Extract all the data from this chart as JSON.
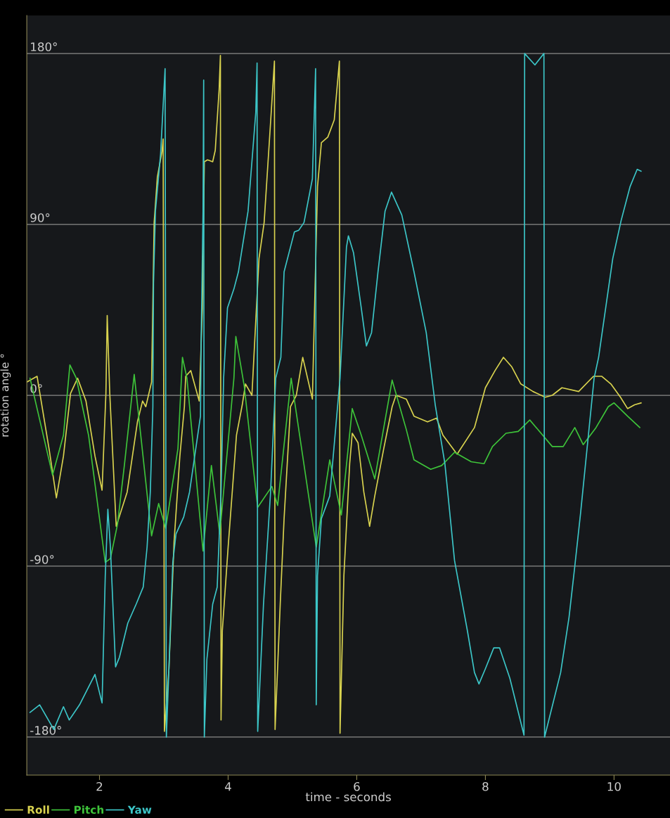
{
  "chart_data": {
    "type": "line",
    "xlabel": "time - seconds",
    "ylabel": "rotation angle °",
    "xlim": [
      0.87,
      10.87
    ],
    "ylim": [
      -200,
      200
    ],
    "xticks": [
      2,
      4,
      6,
      8,
      10
    ],
    "yticks": [
      {
        "value": 180,
        "label": "180°"
      },
      {
        "value": 90,
        "label": "90°"
      },
      {
        "value": 0,
        "label": "0°"
      },
      {
        "value": -90,
        "label": "-90°"
      },
      {
        "value": -180,
        "label": "-180°"
      }
    ],
    "grid": "y",
    "legend": "bottom",
    "line_style": "solid",
    "series": [
      {
        "name": "Roll",
        "color": "#d9d34f",
        "x": [
          0.87,
          1.03,
          1.22,
          1.33,
          1.44,
          1.55,
          1.66,
          1.79,
          1.93,
          2.04,
          2.1,
          2.12,
          2.16,
          2.26,
          2.43,
          2.59,
          2.67,
          2.72,
          2.81,
          2.85,
          2.9,
          2.97,
          2.99,
          3.01,
          3.08,
          3.16,
          3.25,
          3.32,
          3.34,
          3.42,
          3.55,
          3.6,
          3.63,
          3.68,
          3.76,
          3.8,
          3.86,
          3.88,
          3.89,
          3.91,
          4.0,
          4.13,
          4.22,
          4.27,
          4.37,
          4.48,
          4.56,
          4.67,
          4.72,
          4.73,
          4.81,
          4.87,
          4.97,
          5.06,
          5.16,
          5.31,
          5.39,
          5.45,
          5.55,
          5.65,
          5.73,
          5.74,
          5.8,
          5.89,
          5.93,
          6.02,
          6.11,
          6.2,
          6.28,
          6.42,
          6.55,
          6.61,
          6.77,
          6.89,
          7.1,
          7.24,
          7.34,
          7.56,
          7.83,
          8.0,
          8.15,
          8.28,
          8.41,
          8.55,
          8.74,
          8.93,
          9.04,
          9.19,
          9.45,
          9.68,
          9.81,
          9.95,
          10.1,
          10.21,
          10.32,
          10.42
        ],
        "values": [
          7,
          10,
          -29,
          -54,
          -32,
          1,
          9,
          -3,
          -32,
          -50,
          1,
          42,
          1,
          -69,
          -51,
          -14,
          -3,
          -6,
          7,
          91,
          115,
          128,
          135,
          -177,
          -144,
          -77,
          -32,
          -6,
          10,
          13,
          -3,
          46,
          123,
          124,
          123,
          129,
          161,
          179,
          -171,
          -124,
          -80,
          -21,
          -5,
          6,
          0,
          72,
          91,
          149,
          176,
          -176,
          -110,
          -65,
          -6,
          0,
          20,
          -2,
          110,
          133,
          136,
          145,
          176,
          -178,
          -95,
          -36,
          -20,
          -25,
          -51,
          -69,
          -53,
          -28,
          -6,
          0,
          -2,
          -11,
          -14,
          -12,
          -21,
          -31,
          -17,
          4,
          13,
          20,
          15,
          6,
          2,
          -1,
          0,
          4,
          2,
          10,
          10,
          6,
          -1,
          -7,
          -5,
          -4
        ]
      },
      {
        "name": "Pitch",
        "color": "#3ec43a",
        "x": [
          0.92,
          1.27,
          1.44,
          1.54,
          1.64,
          1.83,
          2.09,
          2.17,
          2.28,
          2.39,
          2.54,
          2.81,
          2.92,
          3.03,
          3.22,
          3.29,
          3.36,
          3.61,
          3.74,
          3.87,
          4.09,
          4.12,
          4.25,
          4.46,
          4.68,
          4.77,
          4.98,
          5.37,
          5.58,
          5.76,
          5.93,
          6.07,
          6.28,
          6.55,
          6.77,
          6.89,
          7.15,
          7.32,
          7.52,
          7.78,
          7.98,
          8.11,
          8.32,
          8.51,
          8.69,
          9.04,
          9.21,
          9.39,
          9.52,
          9.72,
          9.91,
          10.0,
          10.21,
          10.4
        ],
        "values": [
          9,
          -42,
          -21,
          16,
          9,
          -21,
          -88,
          -86,
          -68,
          -36,
          11,
          -74,
          -57,
          -70,
          -28,
          20,
          9,
          -82,
          -37,
          -73,
          9,
          31,
          5,
          -59,
          -48,
          -58,
          9,
          -80,
          -34,
          -63,
          -7,
          -21,
          -44,
          8,
          -18,
          -34,
          -39,
          -37,
          -30,
          -35,
          -36,
          -27,
          -20,
          -19,
          -13,
          -27,
          -27,
          -17,
          -26,
          -17,
          -6,
          -4,
          -11,
          -17
        ]
      },
      {
        "name": "Yaw",
        "color": "#3cc6c8",
        "x": [
          0.92,
          1.07,
          1.29,
          1.44,
          1.53,
          1.69,
          1.93,
          2.04,
          2.09,
          2.13,
          2.17,
          2.25,
          2.31,
          2.44,
          2.57,
          2.68,
          2.74,
          2.79,
          2.83,
          2.84,
          2.87,
          2.95,
          3.02,
          3.04,
          3.06,
          3.14,
          3.19,
          3.31,
          3.4,
          3.57,
          3.58,
          3.61,
          3.62,
          3.63,
          3.67,
          3.76,
          3.83,
          3.89,
          3.93,
          3.99,
          4.09,
          4.16,
          4.31,
          4.43,
          4.45,
          4.46,
          4.55,
          4.66,
          4.74,
          4.82,
          4.87,
          5.03,
          5.1,
          5.18,
          5.31,
          5.36,
          5.37,
          5.39,
          5.45,
          5.58,
          5.74,
          5.84,
          5.87,
          5.95,
          6.07,
          6.15,
          6.23,
          6.33,
          6.44,
          6.54,
          6.7,
          6.89,
          7.08,
          7.22,
          7.37,
          7.52,
          7.72,
          7.83,
          7.9,
          8.0,
          8.13,
          8.22,
          8.38,
          8.6,
          8.61,
          8.77,
          8.91,
          8.92,
          9.17,
          9.3,
          9.39,
          9.48,
          9.69,
          9.76,
          9.98,
          10.11,
          10.25,
          10.36,
          10.42
        ],
        "values": [
          -167,
          -163,
          -176,
          -164,
          -171,
          -163,
          -147,
          -162,
          -95,
          -60,
          -80,
          -143,
          -138,
          -120,
          -110,
          -101,
          -80,
          -51,
          -6,
          59,
          97,
          127,
          172,
          -180,
          -162,
          -88,
          -73,
          -64,
          -51,
          -11,
          27,
          97,
          166,
          -180,
          -139,
          -110,
          -101,
          -51,
          9,
          46,
          56,
          65,
          97,
          149,
          175,
          -177,
          -110,
          -51,
          9,
          20,
          65,
          86,
          87,
          91,
          114,
          172,
          -163,
          -95,
          -65,
          -53,
          9,
          78,
          84,
          75,
          46,
          26,
          33,
          65,
          97,
          107,
          95,
          65,
          33,
          -5,
          -36,
          -87,
          -124,
          -146,
          -152,
          -144,
          -133,
          -133,
          -149,
          -179,
          180,
          174,
          180,
          -180,
          -146,
          -117,
          -90,
          -62,
          9,
          20,
          72,
          92,
          110,
          119,
          118
        ]
      }
    ]
  }
}
